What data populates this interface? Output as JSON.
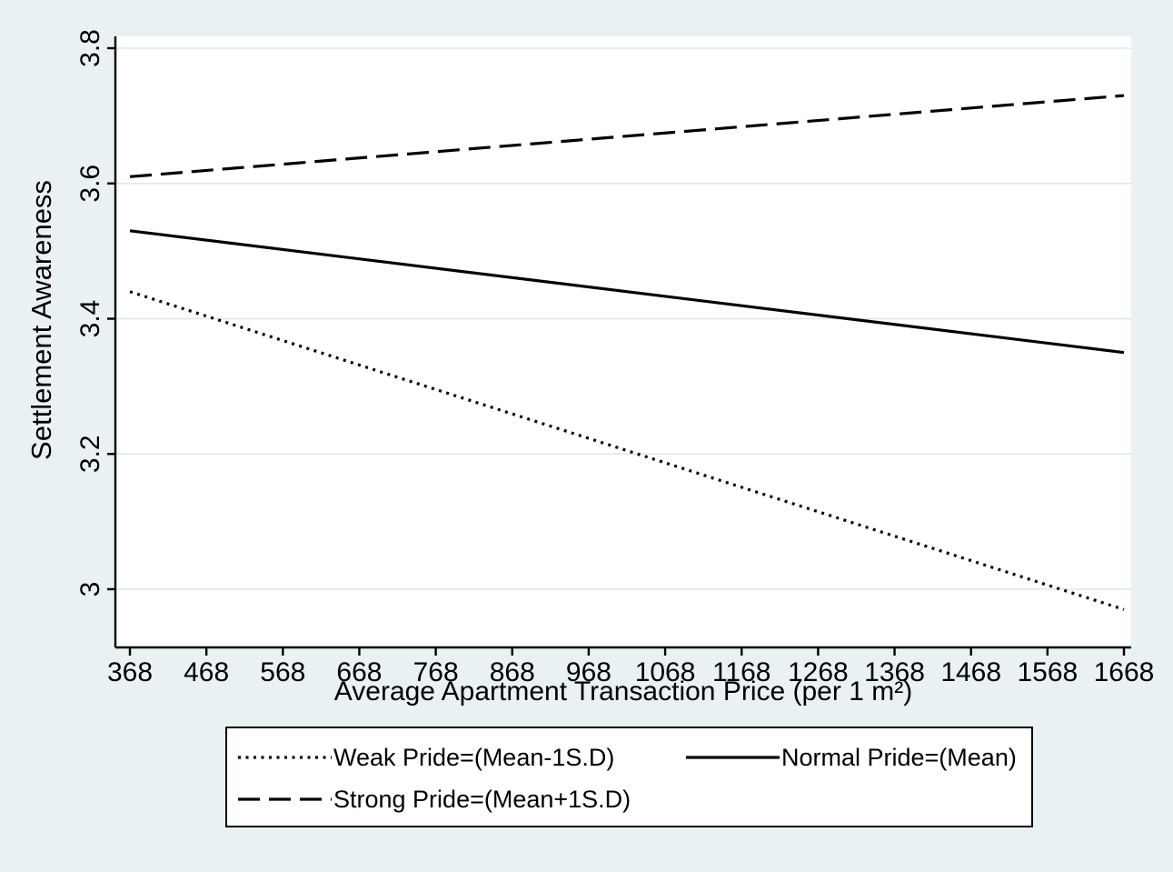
{
  "figure": {
    "background_color": "#e9f1f3",
    "plot_background": "#ffffff",
    "grid_color": "#dbe8eb",
    "axis_color": "#000000"
  },
  "chart_data": {
    "type": "line",
    "title": "",
    "xlabel": "Average Apartment Transaction Price (per 1 m²)",
    "ylabel": "Settlement Awareness",
    "xlim": [
      368,
      1668
    ],
    "ylim": [
      2.91,
      3.82
    ],
    "x_ticks": [
      368,
      468,
      568,
      668,
      768,
      868,
      968,
      1068,
      1168,
      1268,
      1368,
      1468,
      1568,
      1668
    ],
    "y_ticks": [
      3,
      3.2,
      3.4,
      3.6,
      3.8
    ],
    "grid": "horizontal",
    "legend_position": "bottom",
    "series": [
      {
        "name": "Weak Pride=(Mean-1S.D)",
        "style": "dotted",
        "color": "#000000",
        "x": [
          368,
          1668
        ],
        "values": [
          3.44,
          2.97
        ]
      },
      {
        "name": "Normal Pride=(Mean)",
        "style": "solid",
        "color": "#000000",
        "x": [
          368,
          1668
        ],
        "values": [
          3.53,
          3.35
        ]
      },
      {
        "name": "Strong Pride=(Mean+1S.D)",
        "style": "dashed",
        "color": "#000000",
        "x": [
          368,
          1668
        ],
        "values": [
          3.61,
          3.73
        ]
      }
    ]
  }
}
